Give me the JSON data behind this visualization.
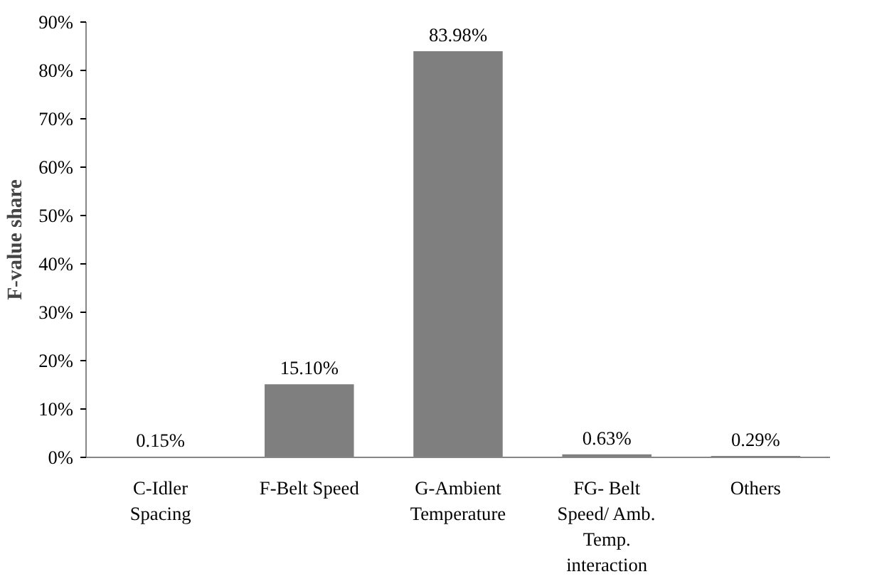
{
  "chart_data": {
    "type": "bar",
    "ylabel": "F-value share",
    "categories": [
      "C-Idler Spacing",
      "F-Belt Speed",
      "G-Ambient Temperature",
      "FG- Belt Speed/ Amb. Temp. interaction",
      "Others"
    ],
    "values": [
      0.15,
      15.1,
      83.98,
      0.63,
      0.29
    ],
    "value_labels": [
      "0.15%",
      "15.10%",
      "83.98%",
      "0.63%",
      "0.29%"
    ],
    "color": "#7f7f7f",
    "ylim": [
      0,
      90
    ],
    "yticks": [
      {
        "value": 0,
        "label": "0%"
      },
      {
        "value": 10,
        "label": "10%"
      },
      {
        "value": 20,
        "label": "20%"
      },
      {
        "value": 30,
        "label": "30%"
      },
      {
        "value": 40,
        "label": "40%"
      },
      {
        "value": 50,
        "label": "50%"
      },
      {
        "value": 60,
        "label": "60%"
      },
      {
        "value": 70,
        "label": "70%"
      },
      {
        "value": 80,
        "label": "80%"
      },
      {
        "value": 90,
        "label": "90%"
      }
    ],
    "grid": false
  }
}
